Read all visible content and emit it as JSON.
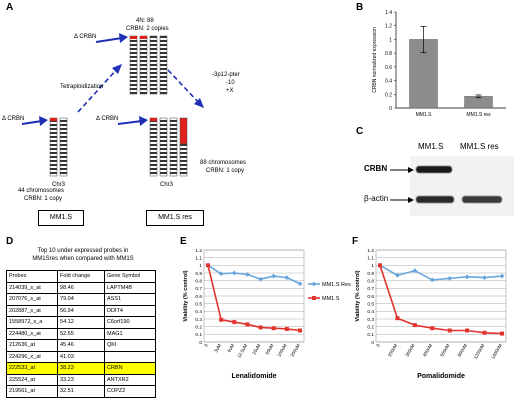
{
  "panel_labels": {
    "a": "A",
    "b": "B",
    "c": "C",
    "d": "D",
    "e": "E",
    "f": "F"
  },
  "panel_a": {
    "top_label": "4N: 88",
    "top_sub": "CRBN: 2 copies",
    "delta_top": "Δ CRBN",
    "delta_left": "Δ CRBN",
    "delta_right": "Δ CRBN",
    "tetra": "Tetraploidization",
    "loss": "-3p12-pter",
    "loss2": "-10",
    "loss3": "+X",
    "left_info1": "44 chromosomes",
    "left_info2": "CRBN: 1 copy",
    "right_info1": "88 chromosomes",
    "right_info2": "CRBN: 1 copy",
    "chr_left": "Chr3",
    "chr_right": "Chr3",
    "box_left": "MM1.S",
    "box_right": "MM1.S res"
  },
  "panel_c": {
    "col1": "MM1.S",
    "col2": "MM1.S res",
    "row1": "CRBN",
    "row2": "β-actin"
  },
  "panel_d": {
    "title1": "Top 10 under expressed probes in",
    "title2": "MM1Sres when compared with MM1S",
    "headers": [
      "Probes",
      "Fold change",
      "Gene Symbol"
    ],
    "rows": [
      [
        "214039_s_at",
        "98.46",
        "LAPTM4B"
      ],
      [
        "207076_s_at",
        "79.04",
        "ASS1"
      ],
      [
        "202887_s_at",
        "56.94",
        "DDIT4"
      ],
      [
        "1558972_s_a",
        "54.12",
        "C6orf190"
      ],
      [
        "224480_s_at",
        "52.65",
        "MAG1"
      ],
      [
        "212636_at",
        "45.46",
        "QKI"
      ],
      [
        "224296_x_at",
        "41.03",
        ""
      ],
      [
        "222533_at",
        "38.23",
        "CRBN"
      ],
      [
        "225524_at",
        "33.23",
        "ANTXR2"
      ],
      [
        "219561_at",
        "32.51",
        "COPZ2"
      ]
    ],
    "highlight_row": 7
  },
  "chart_data": [
    {
      "type": "bar",
      "panel": "B",
      "categories": [
        "MM1.S",
        "MM1.S res"
      ],
      "values": [
        1.0,
        0.17
      ],
      "errors": [
        0.19,
        0.02
      ],
      "ylabel": "CRBN normalized expression",
      "ylim": [
        0,
        1.4
      ],
      "yticks": [
        "0",
        "0.2",
        "0.4",
        "0.6",
        "0.8",
        "1",
        "1.2",
        "1.4"
      ],
      "color": "#8c8c8c"
    },
    {
      "type": "line",
      "panel": "E",
      "xlabel": "Lenalidomide",
      "ylabel": "Viability (% control)",
      "categories": [
        "0",
        "3uM",
        "6uM",
        "12.5uM",
        "25uM",
        "50uM",
        "100uM",
        "200uM"
      ],
      "ylim": [
        0,
        1.2
      ],
      "yticks": [
        "0",
        "0.1",
        "0.2",
        "0.3",
        "0.4",
        "0.5",
        "0.6",
        "0.7",
        "0.8",
        "0.9",
        "1",
        "1.1",
        "1.2"
      ],
      "series": [
        {
          "name": "MM1.S Res",
          "color": "#6aa6de",
          "values": [
            1.0,
            0.89,
            0.9,
            0.88,
            0.82,
            0.86,
            0.84,
            0.76
          ]
        },
        {
          "name": "MM1.S",
          "color": "#e0342f",
          "values": [
            1.0,
            0.29,
            0.26,
            0.23,
            0.19,
            0.18,
            0.17,
            0.15
          ]
        }
      ]
    },
    {
      "type": "line",
      "panel": "F",
      "xlabel": "Pomalidomide",
      "ylabel": "Viability (% control)",
      "categories": [
        "0",
        "200nM",
        "300nM",
        "400nM",
        "500nM",
        "800nM",
        "1200nM",
        "1600nM"
      ],
      "ylim": [
        0,
        1.2
      ],
      "yticks": [
        "0",
        "0.1",
        "0.2",
        "0.3",
        "0.4",
        "0.5",
        "0.6",
        "0.7",
        "0.8",
        "0.9",
        "1",
        "1.1",
        "1.2"
      ],
      "series": [
        {
          "name": "MM1.S Res",
          "color": "#6aa6de",
          "values": [
            1.0,
            0.87,
            0.93,
            0.81,
            0.83,
            0.85,
            0.84,
            0.86
          ]
        },
        {
          "name": "MM1.S",
          "color": "#e0342f",
          "values": [
            1.0,
            0.31,
            0.22,
            0.18,
            0.15,
            0.15,
            0.12,
            0.11
          ]
        }
      ]
    }
  ]
}
